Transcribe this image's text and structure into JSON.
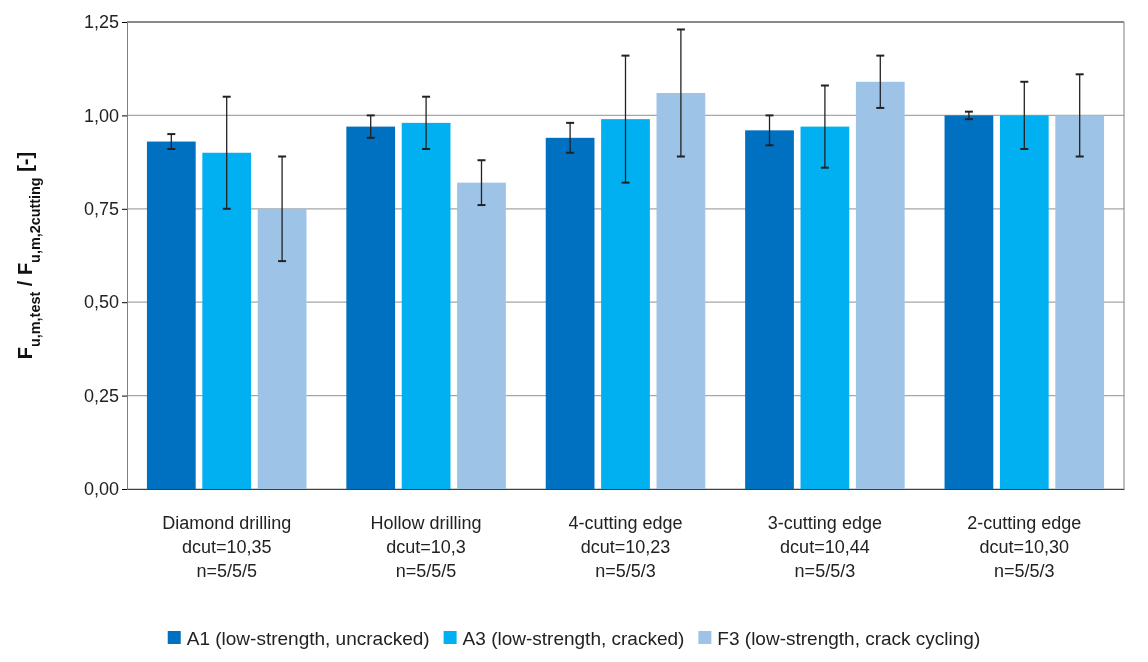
{
  "chart_data": {
    "type": "bar",
    "ylabel": "F$_{u,m,test}$ / F$_{u,m,2cutting}$ [-]",
    "categories": [
      "Diamond drilling\ndcut=10,35\nn=5/5/5",
      "Hollow drilling\ndcut=10,3\nn=5/5/5",
      "4-cutting edge\ndcut=10,23\nn=5/5/3",
      "3-cutting edge\ndcut=10,44\nn=5/5/3",
      "2-cutting edge\ndcut=10,30\nn=5/5/3"
    ],
    "series": [
      {
        "name": "A1 (low-strength, uncracked)",
        "color": "#0070c0",
        "values": [
          0.93,
          0.97,
          0.94,
          0.96,
          1.0
        ],
        "errors": [
          0.02,
          0.03,
          0.04,
          0.04,
          0.01
        ]
      },
      {
        "name": "A3 (low-strength, cracked)",
        "color": "#00b0f0",
        "values": [
          0.9,
          0.98,
          0.99,
          0.97,
          1.0
        ],
        "errors": [
          0.15,
          0.07,
          0.17,
          0.11,
          0.09
        ]
      },
      {
        "name": "F3 (low-strength, crack cycling)",
        "color": "#9dc3e6",
        "values": [
          0.75,
          0.82,
          1.06,
          1.09,
          1.0
        ],
        "errors": [
          0.14,
          0.06,
          0.17,
          0.07,
          0.11
        ]
      }
    ],
    "ylim": [
      0,
      1.25
    ],
    "yticks": [
      {
        "value": 0,
        "label": "0,00"
      },
      {
        "value": 0.25,
        "label": "0,25"
      },
      {
        "value": 0.5,
        "label": "0,50"
      },
      {
        "value": 0.75,
        "label": "0,75"
      },
      {
        "value": 1,
        "label": "1,00"
      },
      {
        "value": 1.25,
        "label": "1,25"
      }
    ],
    "grid": "y",
    "legend": "bottom"
  }
}
